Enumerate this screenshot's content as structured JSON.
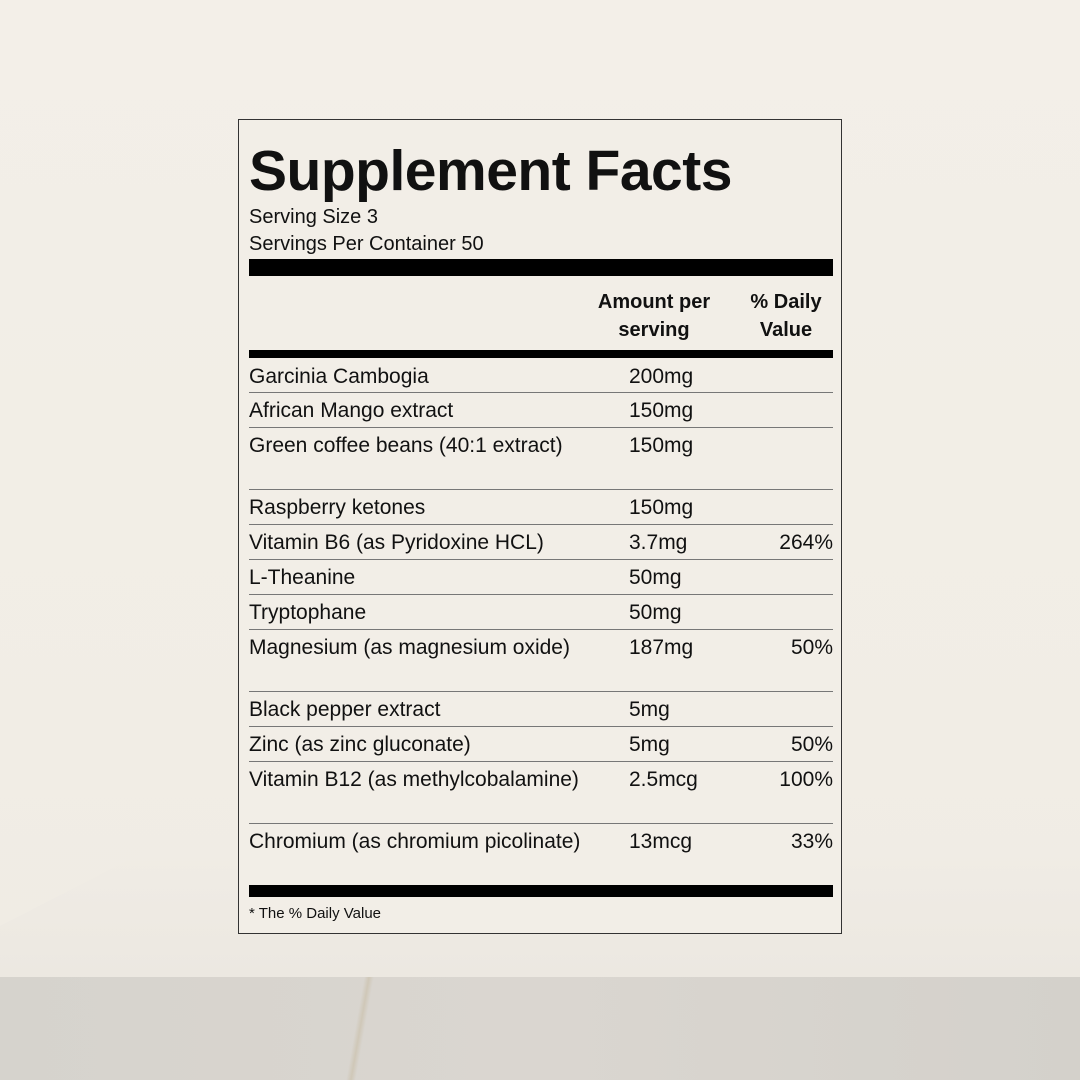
{
  "label": {
    "title": "Supplement Facts",
    "serving_size": "Serving Size 3",
    "servings_per_container": "Servings Per Container 50",
    "header_amount": "Amount per serving",
    "header_daily_value": "% Daily Value",
    "rows": [
      {
        "name": "Garcinia Cambogia",
        "amount": "200mg",
        "dv": ""
      },
      {
        "name": "African Mango extract",
        "amount": "150mg",
        "dv": ""
      },
      {
        "name": "Green coffee beans (40:1 extract)",
        "amount": "150mg",
        "dv": ""
      },
      {
        "name": "Raspberry ketones",
        "amount": "150mg",
        "dv": ""
      },
      {
        "name": "Vitamin B6 (as Pyridoxine HCL)",
        "amount": "3.7mg",
        "dv": "264%"
      },
      {
        "name": "L-Theanine",
        "amount": "50mg",
        "dv": ""
      },
      {
        "name": "Tryptophane",
        "amount": "50mg",
        "dv": ""
      },
      {
        "name": "Magnesium (as magnesium oxide)",
        "amount": "187mg",
        "dv": "50%"
      },
      {
        "name": "Black pepper extract",
        "amount": "5mg",
        "dv": ""
      },
      {
        "name": "Zinc (as zinc gluconate)",
        "amount": "5mg",
        "dv": "50%"
      },
      {
        "name": "Vitamin B12 (as methylcobalamine)",
        "amount": "2.5mcg",
        "dv": "100%"
      },
      {
        "name": "Chromium (as chromium picolinate)",
        "amount": "13mcg",
        "dv": "33%"
      }
    ],
    "footnote": "* The % Daily Value"
  }
}
